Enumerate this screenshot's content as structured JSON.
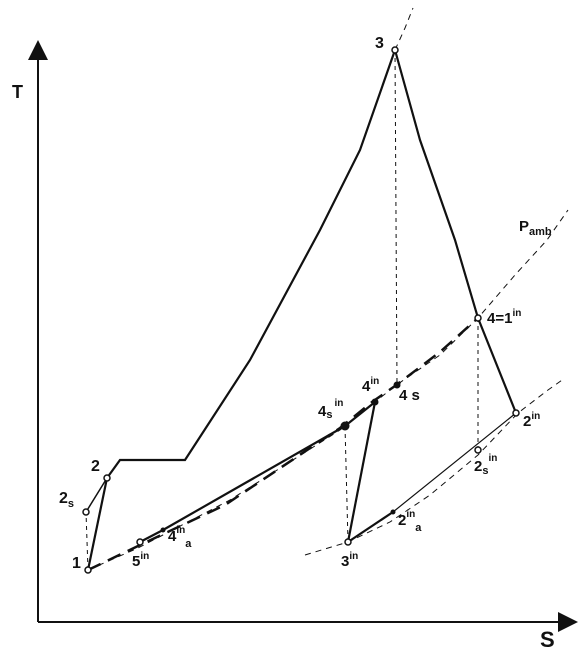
{
  "axes": {
    "y_label": "T",
    "x_label": "S"
  },
  "pressure_label": {
    "main": "P",
    "sub": "amb"
  },
  "points": {
    "p1": "1",
    "p2": "2",
    "p2s": {
      "main": "2",
      "sub": "s"
    },
    "p3": "3",
    "p4s": "4 s",
    "p4eq": {
      "main": "4=1",
      "sup": "in"
    },
    "p4in": {
      "main": "4",
      "sup": "in"
    },
    "p4sin": {
      "main": "4",
      "sub": "s",
      "sup": "in"
    },
    "p4ina": {
      "main": "4",
      "sup": "in",
      "sub": "a"
    },
    "p5in": {
      "main": "5",
      "sup": "in"
    },
    "p3in": {
      "main": "3",
      "sup": "in"
    },
    "p2ina": {
      "main": "2",
      "sup": "in",
      "sub": "a"
    },
    "p2sin": {
      "main": "2",
      "sub": "s",
      "sup": "in"
    },
    "p2in": {
      "main": "2",
      "sup": "in"
    }
  }
}
